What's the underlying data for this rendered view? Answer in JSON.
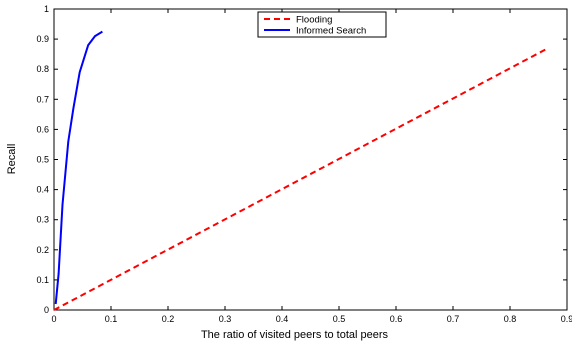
{
  "chart_data": {
    "type": "line",
    "xlabel": "The ratio of visited peers to total peers",
    "ylabel": "Recall",
    "xlim": [
      0,
      0.9
    ],
    "ylim": [
      0,
      1
    ],
    "x_ticks": [
      0,
      0.1,
      0.2,
      0.3,
      0.4,
      0.5,
      0.6,
      0.7,
      0.8,
      0.9
    ],
    "y_ticks": [
      0,
      0.1,
      0.2,
      0.3,
      0.4,
      0.5,
      0.6,
      0.7,
      0.8,
      0.9,
      1
    ],
    "x_tick_labels": [
      "0",
      "0.1",
      "0.2",
      "0.3",
      "0.4",
      "0.5",
      "0.6",
      "0.7",
      "0.8",
      "0.9"
    ],
    "y_tick_labels": [
      "0",
      "0.1",
      "0.2",
      "0.3",
      "0.4",
      "0.5",
      "0.6",
      "0.7",
      "0.8",
      "0.9",
      "1"
    ],
    "grid": false,
    "legend_position": "top-center",
    "series": [
      {
        "name": "Flooding",
        "color": "#ff0000",
        "line_style": "dashed",
        "x": [
          0,
          0.865
        ],
        "y": [
          0,
          0.868
        ]
      },
      {
        "name": "Informed Search",
        "color": "#0000ff",
        "line_style": "solid",
        "x": [
          0.003,
          0.008,
          0.015,
          0.025,
          0.034,
          0.045,
          0.06,
          0.072,
          0.085
        ],
        "y": [
          0.02,
          0.12,
          0.35,
          0.56,
          0.67,
          0.79,
          0.88,
          0.91,
          0.925
        ]
      }
    ]
  }
}
